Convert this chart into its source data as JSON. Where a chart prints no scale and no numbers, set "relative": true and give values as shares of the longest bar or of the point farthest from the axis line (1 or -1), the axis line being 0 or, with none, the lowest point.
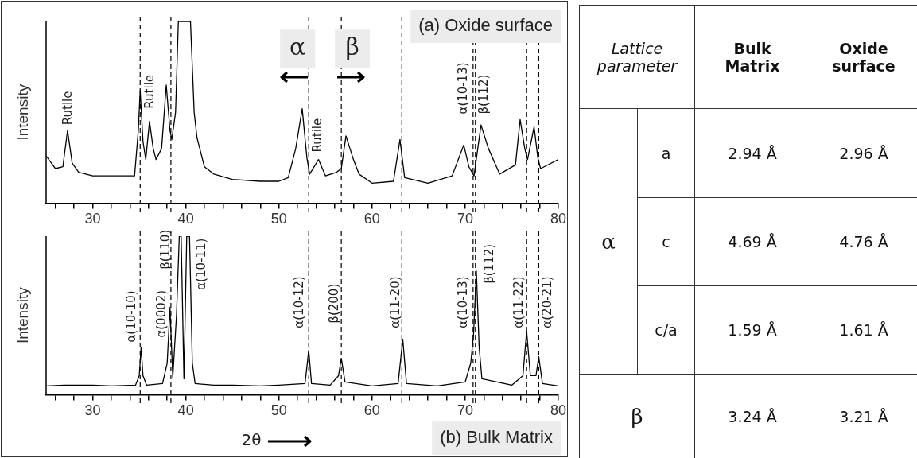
{
  "chart_data": [
    {
      "type": "line",
      "relative": true,
      "ylabel": "Intensity",
      "xlim": [
        25,
        80
      ],
      "xticks": [
        {
          "value": 26,
          "label": null
        },
        {
          "value": 28,
          "label": null
        },
        30,
        {
          "value": 32,
          "label": null
        },
        {
          "value": 34,
          "label": null
        },
        {
          "value": 36,
          "label": null
        },
        {
          "value": 38,
          "label": null
        },
        40,
        {
          "value": 42,
          "label": null
        },
        {
          "value": 44,
          "label": null
        },
        {
          "value": 46,
          "label": null
        },
        {
          "value": 48,
          "label": null
        },
        50,
        {
          "value": 52,
          "label": null
        },
        {
          "value": 54,
          "label": null
        },
        {
          "value": 56,
          "label": null
        },
        {
          "value": 58,
          "label": null
        },
        60,
        {
          "value": 62,
          "label": null
        },
        {
          "value": 64,
          "label": null
        },
        {
          "value": 66,
          "label": null
        },
        {
          "value": 68,
          "label": null
        },
        70,
        {
          "value": 72,
          "label": null
        },
        {
          "value": 74,
          "label": null
        },
        {
          "value": 76,
          "label": null
        },
        {
          "value": 78,
          "label": null
        },
        80
      ],
      "marker": "none",
      "line_style": "solid",
      "legend": false,
      "grid": false,
      "series": [
        {
          "color": "#000000",
          "x": [
            25,
            26,
            26.8,
            27.3,
            27.8,
            28.5,
            30,
            32,
            34.5,
            34.9,
            35.1,
            35.4,
            35.7,
            36.1,
            36.5,
            36.8,
            37.4,
            37.9,
            38.3,
            38.5,
            38.9,
            39.2,
            40.5,
            40.9,
            41.2,
            42,
            43,
            45,
            48,
            50,
            51,
            51.8,
            52.5,
            53.0,
            53.3,
            54.25,
            55,
            56.2,
            56.7,
            57.2,
            58.0,
            58.6,
            60,
            62.3,
            63.0,
            63.5,
            66,
            68.6,
            69.85,
            70.4,
            70.95,
            71.7,
            72.5,
            73.7,
            75.4,
            75.9,
            76.4,
            76.7,
            77.4,
            77.8,
            78.1,
            80
          ],
          "values": [
            0.26,
            0.19,
            0.2,
            0.4,
            0.22,
            0.17,
            0.15,
            0.15,
            0.15,
            0.4,
            0.62,
            0.34,
            0.24,
            0.45,
            0.3,
            0.24,
            0.3,
            0.65,
            0.4,
            0.35,
            0.5,
            1,
            1,
            0.5,
            0.36,
            0.2,
            0.16,
            0.13,
            0.12,
            0.12,
            0.14,
            0.3,
            0.52,
            0.25,
            0.16,
            0.24,
            0.15,
            0.17,
            0.19,
            0.37,
            0.24,
            0.16,
            0.11,
            0.12,
            0.35,
            0.14,
            0.11,
            0.15,
            0.32,
            0.2,
            0.15,
            0.43,
            0.3,
            0.16,
            0.21,
            0.46,
            0.3,
            0.24,
            0.42,
            0.25,
            0.19,
            0.24
          ]
        }
      ],
      "ref_lines": [
        {
          "axis": "x",
          "value": 35.1,
          "line_style": "dashed",
          "color": "#000000"
        },
        {
          "axis": "x",
          "value": 38.4,
          "line_style": "dashed",
          "color": "#000000"
        },
        {
          "axis": "x",
          "value": 53.2,
          "line_style": "dashed",
          "color": "#000000"
        },
        {
          "axis": "x",
          "value": 56.7,
          "line_style": "dashed",
          "color": "#000000"
        },
        {
          "axis": "x",
          "value": 63.2,
          "line_style": "dashed",
          "color": "#000000"
        },
        {
          "axis": "x",
          "value": 70.85,
          "line_style": "dashed",
          "color": "#000000"
        },
        {
          "axis": "x",
          "value": 71.1,
          "line_style": "dashed",
          "color": "#000000"
        },
        {
          "axis": "x",
          "value": 76.6,
          "line_style": "dashed",
          "color": "#000000"
        },
        {
          "axis": "x",
          "value": 77.9,
          "line_style": "dashed",
          "color": "#000000"
        }
      ],
      "annotations": [
        "Rutile",
        "Rutile",
        "Rutile",
        "α(10-13)",
        "β(112)",
        "α",
        "β",
        "(a) Oxide surface"
      ]
    },
    {
      "type": "line",
      "relative": true,
      "ylabel": "Intensity",
      "xlim": [
        25,
        80
      ],
      "xticks": [
        {
          "value": 26,
          "label": null
        },
        {
          "value": 28,
          "label": null
        },
        30,
        {
          "value": 32,
          "label": null
        },
        {
          "value": 34,
          "label": null
        },
        {
          "value": 36,
          "label": null
        },
        {
          "value": 38,
          "label": null
        },
        40,
        {
          "value": 42,
          "label": null
        },
        {
          "value": 44,
          "label": null
        },
        {
          "value": 46,
          "label": null
        },
        {
          "value": 48,
          "label": null
        },
        50,
        {
          "value": 52,
          "label": null
        },
        {
          "value": 54,
          "label": null
        },
        {
          "value": 56,
          "label": null
        },
        {
          "value": 58,
          "label": null
        },
        60,
        {
          "value": 62,
          "label": null
        },
        {
          "value": 64,
          "label": null
        },
        {
          "value": 66,
          "label": null
        },
        {
          "value": 68,
          "label": null
        },
        70,
        {
          "value": 72,
          "label": null
        },
        {
          "value": 74,
          "label": null
        },
        {
          "value": 76,
          "label": null
        },
        {
          "value": 78,
          "label": null
        },
        80
      ],
      "marker": "none",
      "line_style": "solid",
      "legend": false,
      "grid": false,
      "series": [
        {
          "color": "#000000",
          "x": [
            25,
            27,
            30,
            32,
            34.6,
            35.0,
            35.2,
            35.4,
            35.8,
            37.5,
            38.0,
            38.3,
            38.6,
            39.0,
            39.3,
            39.5,
            39.8,
            40.1,
            40.4,
            40.7,
            41.0,
            43,
            45,
            48,
            50,
            52.8,
            53.2,
            53.5,
            55.5,
            56.4,
            56.7,
            57.1,
            60,
            62.8,
            63.3,
            63.7,
            67,
            70,
            70.6,
            70.9,
            71.2,
            71.5,
            71.8,
            75,
            76.2,
            76.6,
            77.0,
            77.6,
            77.9,
            78.3,
            80
          ],
          "values": [
            0.055,
            0.06,
            0.06,
            0.055,
            0.06,
            0.12,
            0.3,
            0.12,
            0.06,
            0.07,
            0.2,
            0.55,
            0.11,
            0.5,
            1,
            1,
            0.1,
            1,
            1,
            0.2,
            0.07,
            0.06,
            0.06,
            0.055,
            0.06,
            0.07,
            0.28,
            0.07,
            0.06,
            0.12,
            0.23,
            0.08,
            0.055,
            0.07,
            0.35,
            0.07,
            0.055,
            0.08,
            0.2,
            0.38,
            0.78,
            0.3,
            0.1,
            0.06,
            0.12,
            0.4,
            0.12,
            0.12,
            0.24,
            0.07,
            0.055
          ]
        }
      ],
      "ref_lines": [
        {
          "axis": "x",
          "value": 35.1,
          "line_style": "dashed",
          "color": "#000000"
        },
        {
          "axis": "x",
          "value": 38.4,
          "line_style": "dashed",
          "color": "#000000"
        },
        {
          "axis": "x",
          "value": 53.2,
          "line_style": "dashed",
          "color": "#000000"
        },
        {
          "axis": "x",
          "value": 56.7,
          "line_style": "dashed",
          "color": "#000000"
        },
        {
          "axis": "x",
          "value": 63.2,
          "line_style": "dashed",
          "color": "#000000"
        },
        {
          "axis": "x",
          "value": 70.85,
          "line_style": "dashed",
          "color": "#000000"
        },
        {
          "axis": "x",
          "value": 71.1,
          "line_style": "dashed",
          "color": "#000000"
        },
        {
          "axis": "x",
          "value": 76.6,
          "line_style": "dashed",
          "color": "#000000"
        },
        {
          "axis": "x",
          "value": 77.9,
          "line_style": "dashed",
          "color": "#000000"
        }
      ],
      "annotations": [
        "α(10-10)",
        "α(0002)",
        "β(110)",
        "α(10-11)",
        "α(10-12)",
        "β(200)",
        "α(11-20)",
        "α(10-13)",
        "β(112)",
        "α(11-22)",
        "α(20-21)",
        "2θ",
        "(b) Bulk Matrix"
      ]
    },
    {
      "type": "other",
      "annotations": [
        "Lattice parameter",
        "Bulk Matrix",
        "Oxide surface",
        "α",
        "a",
        "2.94 Å",
        "2.96 Å",
        "c",
        "4.69 Å",
        "4.76 Å",
        "c/a",
        "1.59 Å",
        "1.61 Å",
        "β",
        "3.24 Å",
        "3.21 Å"
      ]
    }
  ]
}
